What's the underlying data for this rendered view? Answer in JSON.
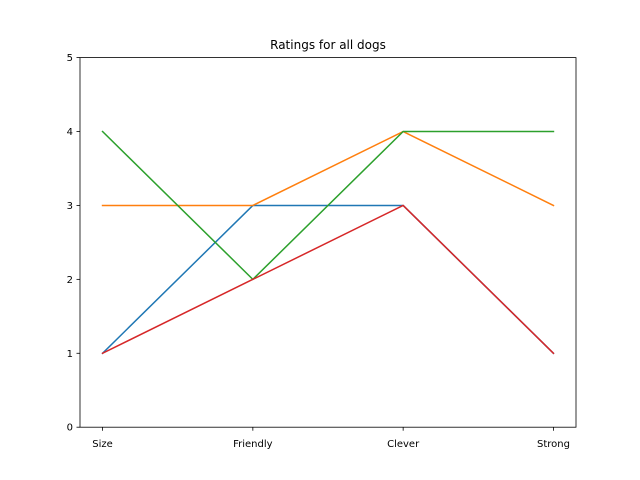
{
  "chart_data": {
    "type": "line",
    "title": "Ratings for all dogs",
    "xlabel": "",
    "ylabel": "",
    "categories": [
      "Size",
      "Friendly",
      "Clever",
      "Strong"
    ],
    "ylim": [
      0,
      5
    ],
    "yticks": [
      0,
      1,
      2,
      3,
      4,
      5
    ],
    "grid": false,
    "series": [
      {
        "color": "#1f77b4",
        "values": [
          1,
          3,
          3,
          1
        ]
      },
      {
        "color": "#ff7f0e",
        "values": [
          3,
          3,
          4,
          3
        ]
      },
      {
        "color": "#2ca02c",
        "values": [
          4,
          2,
          4,
          4
        ]
      },
      {
        "color": "#d62728",
        "values": [
          1,
          2,
          3,
          1
        ]
      }
    ]
  }
}
